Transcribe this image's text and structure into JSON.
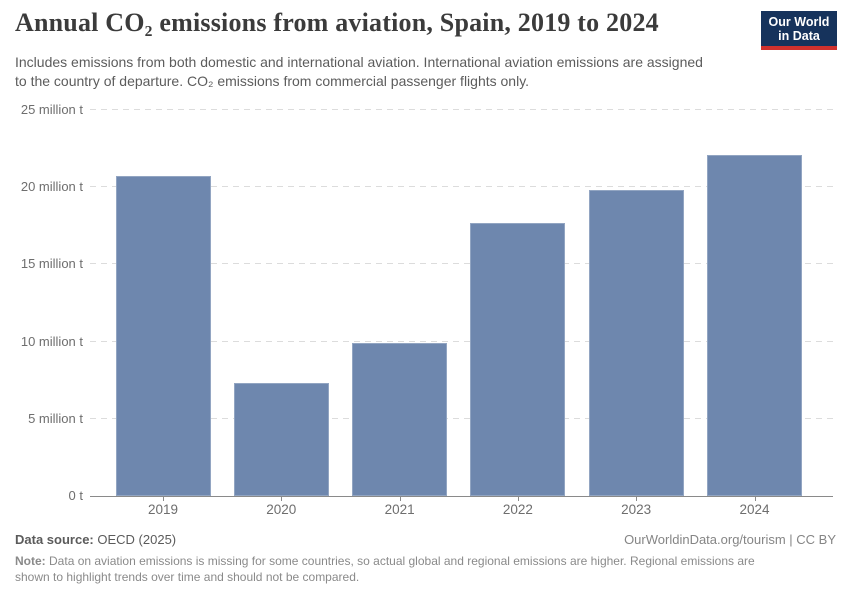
{
  "header": {
    "title": "Annual CO₂ emissions from aviation, Spain, 2019 to 2024",
    "subtitle_line1": "Includes emissions from both domestic and international aviation. International aviation emissions are assigned",
    "subtitle_line2": "to the country of departure. CO₂ emissions from commercial passenger flights only.",
    "logo": {
      "line1": "Our World",
      "line2": "in Data"
    }
  },
  "chart_data": {
    "type": "bar",
    "title": "Annual CO₂ emissions from aviation, Spain, 2019 to 2024",
    "categories": [
      "2019",
      "2020",
      "2021",
      "2022",
      "2023",
      "2024"
    ],
    "values": [
      20.7,
      7.3,
      9.9,
      17.7,
      19.8,
      22.1
    ],
    "unit": "million tonnes of CO₂",
    "xlabel": "",
    "ylabel": "",
    "ylim": [
      0,
      25
    ],
    "yticks": [
      0,
      5,
      10,
      15,
      20,
      25
    ],
    "ytick_labels": [
      "0 t",
      "5 million t",
      "10 million t",
      "15 million t",
      "20 million t",
      "25 million t"
    ],
    "grid": "horizontal-dashed",
    "legend": "none",
    "bar_color": "#6e87ae"
  },
  "footer": {
    "source_label": "Data source:",
    "source_value": "OECD (2025)",
    "attribution": "OurWorldinData.org/tourism | CC BY",
    "note_label": "Note:",
    "note_line1": "Data on aviation emissions is missing for some countries, so actual global and regional emissions are higher. Regional emissions are",
    "note_line2": "shown to highlight trends over time and should not be compared."
  },
  "colors": {
    "background": "#ffffff",
    "bar": "#6e87ae",
    "title_text": "#3b3b3b",
    "subtitle_text": "#5c5c5c",
    "axis_text": "#6e6e6e",
    "gridline": "#dcdcdc",
    "axis_line": "#8a8a8a",
    "logo_background": "#16335c",
    "logo_accent": "#d0312d",
    "footer_text": "#5b5b5b",
    "note_text": "#8a8a8a"
  }
}
